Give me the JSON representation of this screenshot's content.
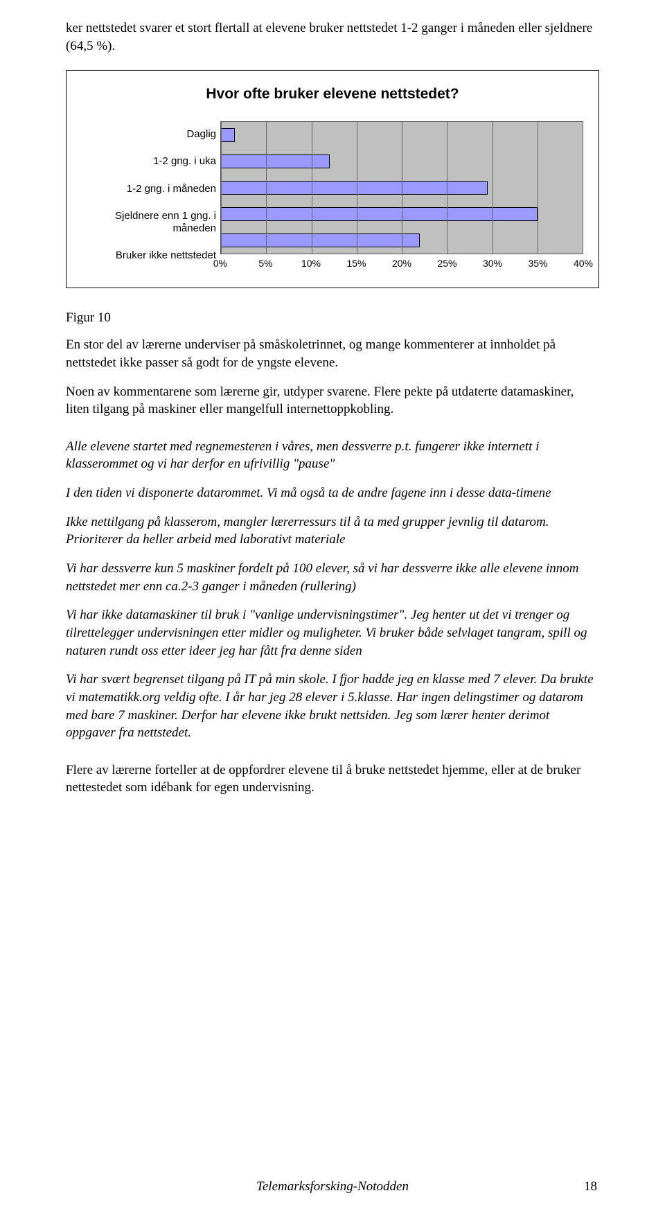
{
  "intro_text": "ker nettstedet svarer et stort flertall at elevene bruker nettstedet 1-2 ganger i måneden eller sjeldnere (64,5 %).",
  "chart": {
    "type": "bar",
    "title": "Hvor ofte bruker elevene nettstedet?",
    "categories": [
      "Daglig",
      "1-2 gng. i uka",
      "1-2 gng. i måneden",
      "Sjeldnere enn 1 gng. i måneden",
      "Bruker ikke nettstedet"
    ],
    "values": [
      1.5,
      12,
      29.5,
      35,
      22
    ],
    "xmax": 40,
    "xtick_step": 5,
    "xticks": [
      "0%",
      "5%",
      "10%",
      "15%",
      "20%",
      "25%",
      "30%",
      "35%",
      "40%"
    ],
    "bar_fill": "#9999ff",
    "bar_border": "#000000",
    "plot_bg": "#c0c0c0",
    "grid_color": "#666666",
    "title_fontsize": 21,
    "label_fontsize": 15,
    "tick_fontsize": 14
  },
  "figure_label": "Figur 10",
  "para1": "En stor del av lærerne underviser på småskoletrinnet, og mange kommenterer at innholdet på nettstedet ikke passer så godt for de yngste elevene.",
  "para2": "Noen av kommentarene som lærerne gir, utdyper svarene. Flere pekte på utdaterte datamaskiner, liten tilgang på maskiner eller mangelfull internettoppkobling.",
  "ipara1": "Alle elevene startet med regnemesteren i våres, men dessverre p.t. fungerer ikke internett i klasserommet og vi har derfor en ufrivillig \"pause\"",
  "ipara2": "I den tiden vi disponerte datarommet. Vi må også ta de andre fagene inn i desse data-timene",
  "ipara3": "Ikke nettilgang på klasserom, mangler lærerressurs til å ta med grupper jevnlig til datarom. Prioriterer da heller arbeid med laborativt materiale",
  "ipara4": "Vi har dessverre kun 5 maskiner fordelt på 100 elever, så vi har dessverre ikke alle elevene innom nettstedet mer enn ca.2-3 ganger i måneden (rullering)",
  "ipara5": "Vi har ikke datamaskiner til bruk i \"vanlige undervisningstimer\". Jeg henter ut det vi trenger og tilrettelegger undervisningen etter midler og muligheter. Vi bruker både selvlaget tangram, spill og naturen rundt oss etter ideer jeg har fått fra denne siden",
  "ipara6": "Vi har svært begrenset tilgang på IT på min skole. I fjor hadde jeg en klasse med 7 elever. Da brukte vi matematikk.org veldig ofte. I år har jeg 28 elever i 5.klasse. Har ingen delingstimer og datarom med bare 7 maskiner. Derfor har elevene ikke brukt nettsiden. Jeg som lærer henter derimot oppgaver fra nettstedet.",
  "closing": "Flere av lærerne forteller at de oppfordrer elevene til å bruke nettstedet hjemme, eller at de bruker nettestedet som idébank for egen undervisning.",
  "footer": "Telemarksforsking-Notodden",
  "page_num": "18"
}
